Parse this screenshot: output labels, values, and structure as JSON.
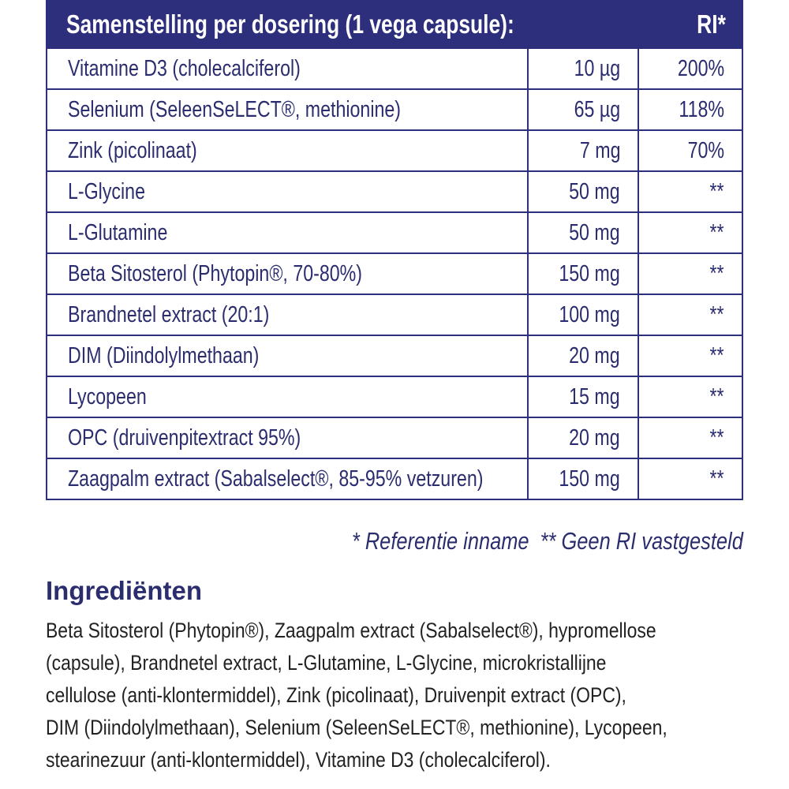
{
  "table": {
    "header": {
      "title": "Samenstelling per dosering (1 vega capsule):",
      "ri": "RI*"
    },
    "rows": [
      [
        "Vitamine D3 (cholecalciferol)",
        "10 µg",
        "200%"
      ],
      [
        "Selenium (SeleenSeLECT®, methionine)",
        "65 µg",
        "118%"
      ],
      [
        "Zink (picolinaat)",
        "7 mg",
        "70%"
      ],
      [
        "L-Glycine",
        "50 mg",
        "**"
      ],
      [
        "L-Glutamine",
        "50 mg",
        "**"
      ],
      [
        "Beta Sitosterol (Phytopin®, 70-80%)",
        "150 mg",
        "**"
      ],
      [
        "Brandnetel extract (20:1)",
        "100 mg",
        "**"
      ],
      [
        "DIM (Diindolylmethaan)",
        "20 mg",
        "**"
      ],
      [
        "Lycopeen",
        "15 mg",
        "**"
      ],
      [
        "OPC (druivenpitextract 95%)",
        "20 mg",
        "**"
      ],
      [
        "Zaagpalm extract (Sabalselect®, 85-95% vetzuren)",
        "150 mg",
        "**"
      ]
    ]
  },
  "footnote": "* Referentie inname  ** Geen RI vastgesteld",
  "ingredients": {
    "title": "Ingrediënten",
    "lines": [
      "Beta Sitosterol (Phytopin®), Zaagpalm extract (Sabalselect®), hypromellose",
      "(capsule), Brandnetel extract, L-Glutamine, L-Glycine, microkristallijne",
      "cellulose (anti-klontermiddel), Zink (picolinaat), Druivenpit extract (OPC),",
      "DIM (Diindolylmethaan), Selenium (SeleenSeLECT®, methionine), Lycopeen,",
      "stearinezuur (anti-klontermiddel), Vitamine D3 (cholecalciferol)."
    ]
  }
}
